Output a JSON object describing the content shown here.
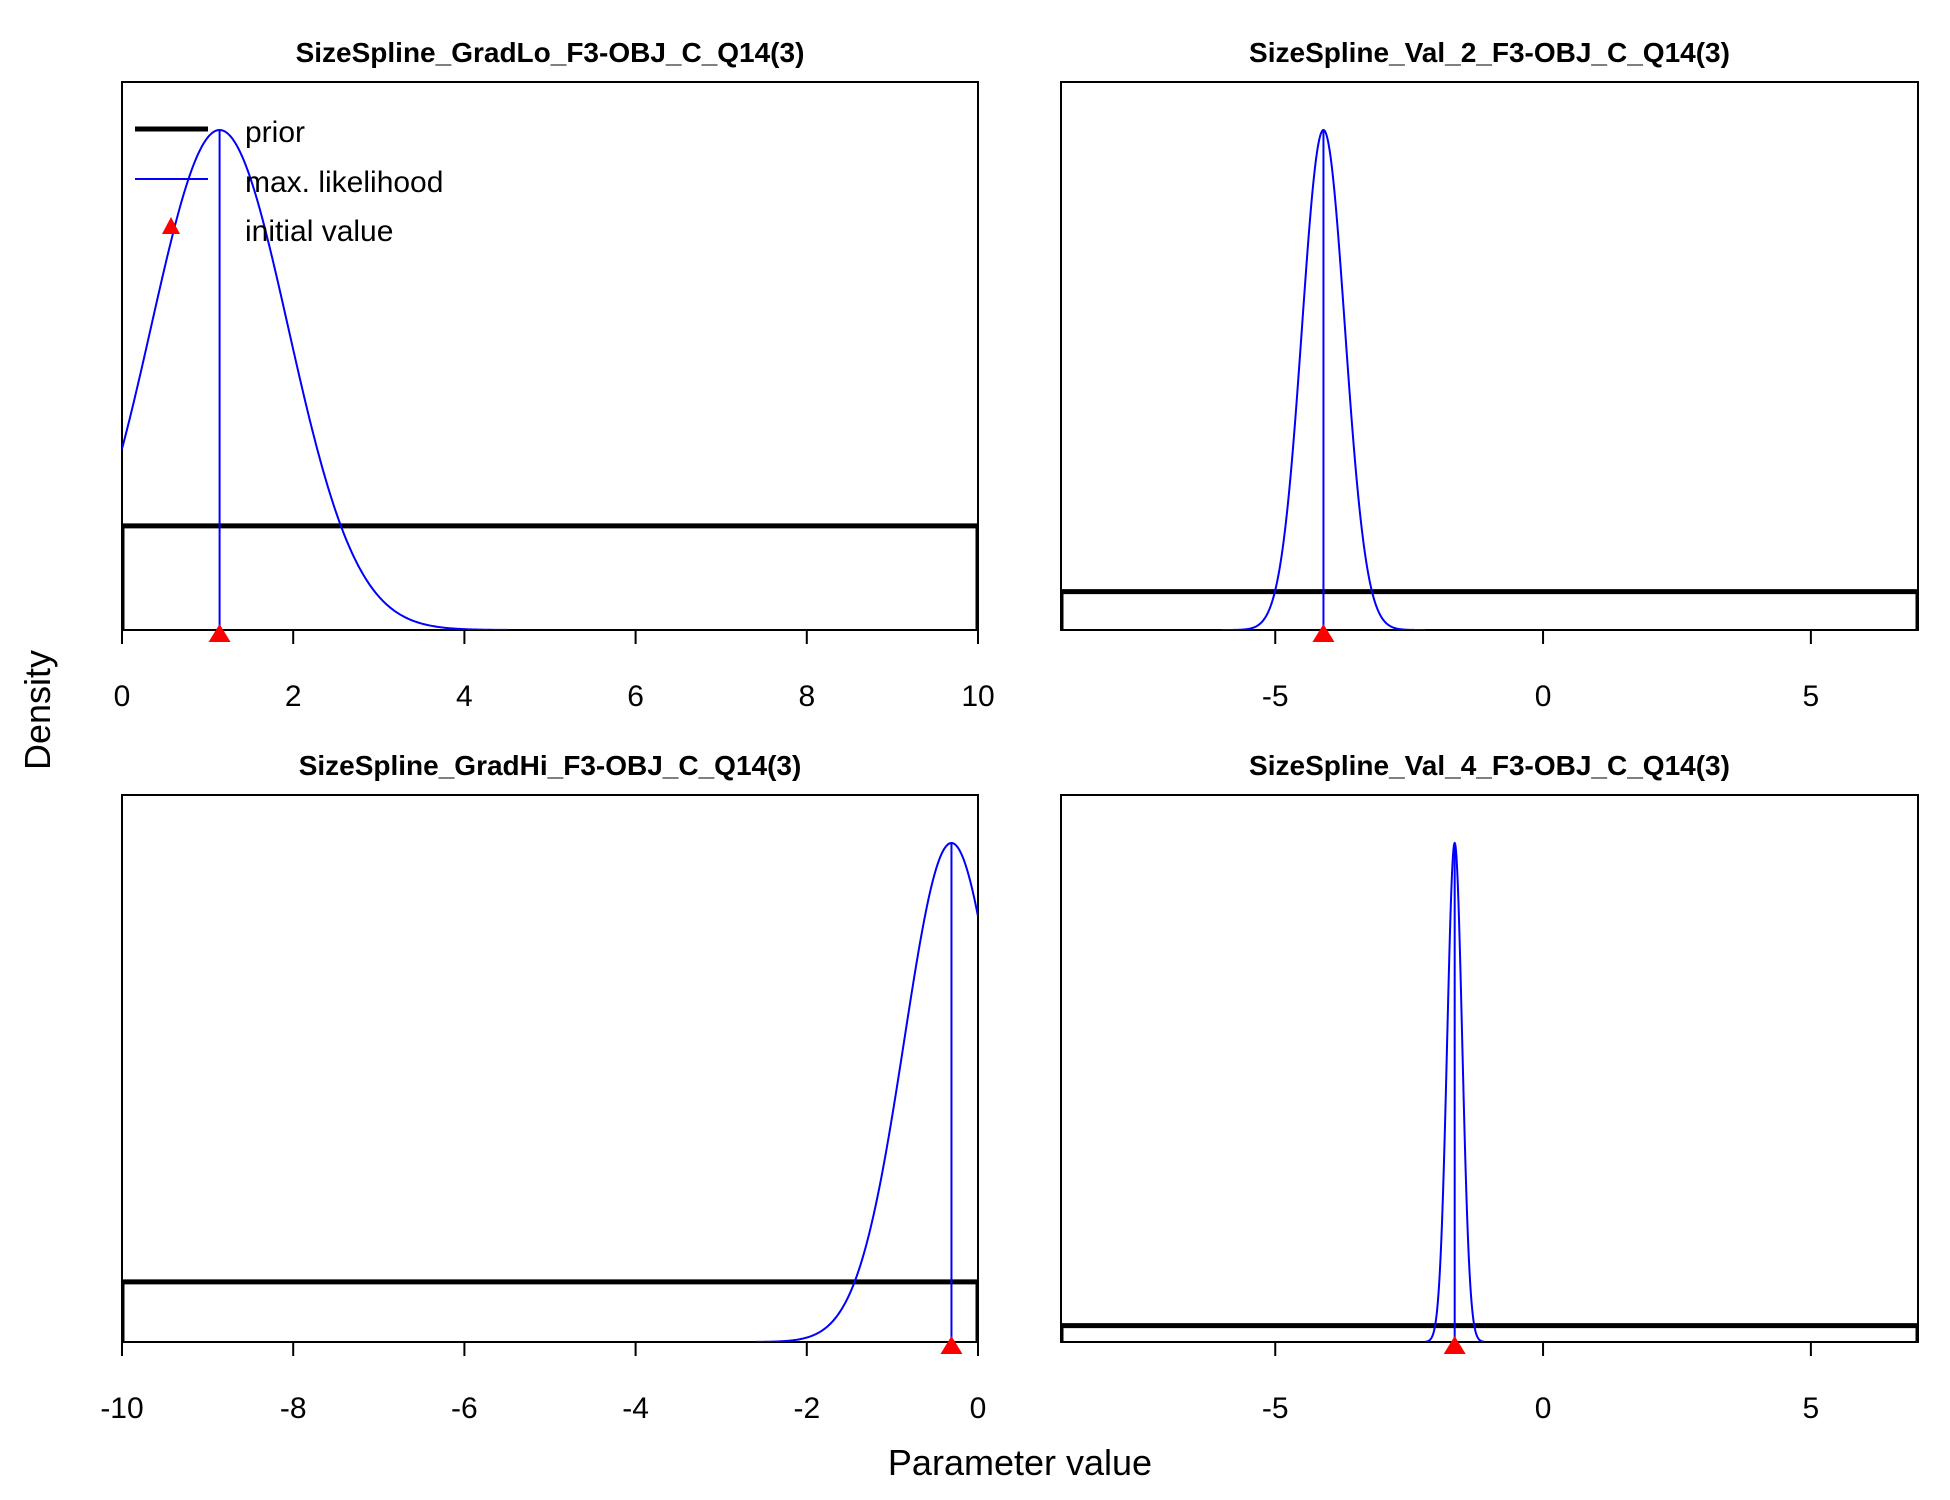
{
  "figure": {
    "ylabel": "Density",
    "xlabel": "Parameter value",
    "colors": {
      "prior": "#000000",
      "likelihood": "#0000ff",
      "initial": "#ff0000",
      "frame": "#000000"
    }
  },
  "legend": {
    "placement": "top-left of first panel",
    "items": [
      {
        "label": "prior",
        "symbol": "thick-black-line-icon"
      },
      {
        "label": "max. likelihood",
        "symbol": "blue-line-icon"
      },
      {
        "label": "initial value",
        "symbol": "red-triangle-icon"
      }
    ]
  },
  "chart_data": [
    {
      "type": "line",
      "title": "SizeSpline_GradLo_F3-OBJ_C_Q14(3)",
      "xlim": [
        0,
        10
      ],
      "xticks": [
        0,
        2,
        4,
        6,
        8,
        10
      ],
      "xtick_labels": [
        "0",
        "2",
        "4",
        "6",
        "8",
        "10"
      ],
      "y_max_density": 1.0,
      "series": [
        {
          "name": "prior",
          "kind": "uniform",
          "from": 0,
          "to": 10,
          "relative_height": 0.19
        },
        {
          "name": "max. likelihood",
          "kind": "normal",
          "mean": 1.14,
          "sd": 0.8,
          "range": [
            0,
            4.5
          ]
        }
      ],
      "mle": 1.14,
      "initial_value": 1.14
    },
    {
      "type": "line",
      "title": "SizeSpline_Val_2_F3-OBJ_C_Q14(3)",
      "xlim": [
        -9,
        7
      ],
      "xticks": [
        -5,
        0,
        5
      ],
      "xtick_labels": [
        "-5",
        "0",
        "5"
      ],
      "series": [
        {
          "name": "prior",
          "kind": "uniform",
          "from": -9,
          "to": 7,
          "relative_height": 0.07
        },
        {
          "name": "max. likelihood",
          "kind": "normal",
          "mean": -4.1,
          "sd": 0.4,
          "range": [
            -6,
            -2.2
          ]
        }
      ],
      "mle": -4.1,
      "initial_value": -4.1
    },
    {
      "type": "line",
      "title": "SizeSpline_GradHi_F3-OBJ_C_Q14(3)",
      "xlim": [
        -10,
        0
      ],
      "xticks": [
        -10,
        -8,
        -6,
        -4,
        -2,
        0
      ],
      "xtick_labels": [
        "-10",
        "-8",
        "-6",
        "-4",
        "-2",
        "0"
      ],
      "series": [
        {
          "name": "prior",
          "kind": "uniform",
          "from": -10,
          "to": 0,
          "relative_height": 0.11
        },
        {
          "name": "max. likelihood",
          "kind": "normal",
          "mean": -0.31,
          "sd": 0.55,
          "range": [
            -2.6,
            0
          ]
        }
      ],
      "mle": -0.31,
      "initial_value": -0.31
    },
    {
      "type": "line",
      "title": "SizeSpline_Val_4_F3-OBJ_C_Q14(3)",
      "xlim": [
        -9,
        7
      ],
      "xticks": [
        -5,
        0,
        5
      ],
      "xtick_labels": [
        "-5",
        "0",
        "5"
      ],
      "series": [
        {
          "name": "prior",
          "kind": "uniform",
          "from": -9,
          "to": 7,
          "relative_height": 0.03
        },
        {
          "name": "max. likelihood",
          "kind": "normal",
          "mean": -1.65,
          "sd": 0.14,
          "range": [
            -2.2,
            -1.1
          ]
        }
      ],
      "mle": -1.65,
      "initial_value": -1.65
    }
  ]
}
